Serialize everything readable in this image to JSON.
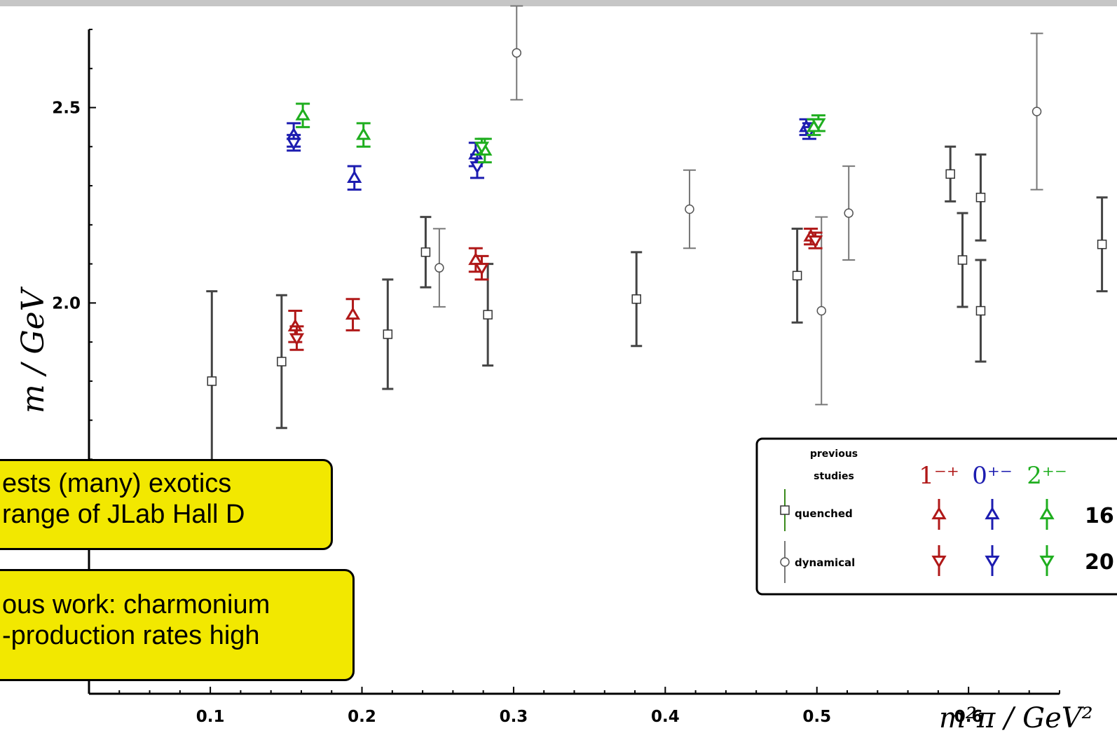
{
  "chart_data": {
    "type": "scatter",
    "xlabel": "m²π / GeV²",
    "ylabel": "m / GeV",
    "xlim": [
      0.02,
      0.66
    ],
    "ylim": [
      1.0,
      2.7
    ],
    "x_ticks": [
      0.1,
      0.2,
      0.3,
      0.4,
      0.5,
      0.6
    ],
    "y_ticks": [
      2.0,
      2.5
    ],
    "x_tick_labels": [
      "0.1",
      "0.2",
      "0.3",
      "0.4",
      "0.5",
      "0.6"
    ],
    "y_tick_labels": [
      "2.0",
      "2.5"
    ],
    "grid": false,
    "legend_placement": "bottom-right",
    "legend": {
      "header": "previous studies",
      "quenched": "quenched",
      "dynamical": "dynamical",
      "groups": [
        "1⁻⁺",
        "0⁺⁻",
        "2⁺⁻"
      ],
      "group_colors": [
        "#b01818",
        "#1c1cb0",
        "#1fae1f"
      ],
      "row_labels": [
        "16",
        "20"
      ]
    },
    "series": [
      {
        "marker": "square",
        "color": "#444444",
        "points": [
          [
            0.101,
            1.8,
            0.23
          ],
          [
            0.147,
            1.85,
            0.17
          ],
          [
            0.217,
            1.92,
            0.14
          ],
          [
            0.242,
            2.13,
            0.09
          ],
          [
            0.283,
            1.97,
            0.13
          ],
          [
            0.381,
            2.01,
            0.12
          ],
          [
            0.487,
            2.07,
            0.12
          ],
          [
            0.588,
            2.33,
            0.07
          ],
          [
            0.596,
            2.11,
            0.12
          ],
          [
            0.608,
            2.27,
            0.11
          ],
          [
            0.608,
            1.98,
            0.13
          ],
          [
            0.688,
            2.15,
            0.12
          ]
        ]
      },
      {
        "marker": "circle",
        "color": "#777777",
        "points": [
          [
            0.251,
            2.09,
            0.1
          ],
          [
            0.302,
            2.64,
            0.12
          ],
          [
            0.416,
            2.24,
            0.1
          ],
          [
            0.503,
            1.98,
            0.24
          ],
          [
            0.521,
            2.23,
            0.12
          ],
          [
            0.645,
            2.49,
            0.2
          ]
        ]
      },
      {
        "group": 0,
        "direction": "up",
        "points": [
          [
            0.156,
            1.94,
            0.04
          ],
          [
            0.194,
            1.97,
            0.04
          ],
          [
            0.275,
            2.11,
            0.03
          ],
          [
            0.496,
            2.17,
            0.02
          ]
        ]
      },
      {
        "group": 0,
        "direction": "down",
        "points": [
          [
            0.157,
            1.91,
            0.03
          ],
          [
            0.279,
            2.09,
            0.03
          ],
          [
            0.499,
            2.16,
            0.02
          ]
        ]
      },
      {
        "group": 1,
        "direction": "up",
        "points": [
          [
            0.155,
            2.43,
            0.03
          ],
          [
            0.195,
            2.32,
            0.03
          ],
          [
            0.275,
            2.38,
            0.03
          ],
          [
            0.493,
            2.45,
            0.02
          ]
        ]
      },
      {
        "group": 1,
        "direction": "down",
        "points": [
          [
            0.155,
            2.41,
            0.02
          ],
          [
            0.276,
            2.35,
            0.03
          ],
          [
            0.495,
            2.44,
            0.02
          ]
        ]
      },
      {
        "group": 2,
        "direction": "up",
        "points": [
          [
            0.161,
            2.48,
            0.03
          ],
          [
            0.201,
            2.43,
            0.03
          ],
          [
            0.281,
            2.39,
            0.03
          ],
          [
            0.498,
            2.45,
            0.02
          ]
        ]
      },
      {
        "group": 2,
        "direction": "down",
        "points": [
          [
            0.279,
            2.4,
            0.02
          ],
          [
            0.501,
            2.46,
            0.02
          ]
        ]
      }
    ]
  },
  "callouts": {
    "top": {
      "line1": "ests (many) exotics",
      "line2": "range of JLab Hall D"
    },
    "bottom": {
      "line1": "ous work: charmonium",
      "line2": "-production rates high"
    }
  }
}
